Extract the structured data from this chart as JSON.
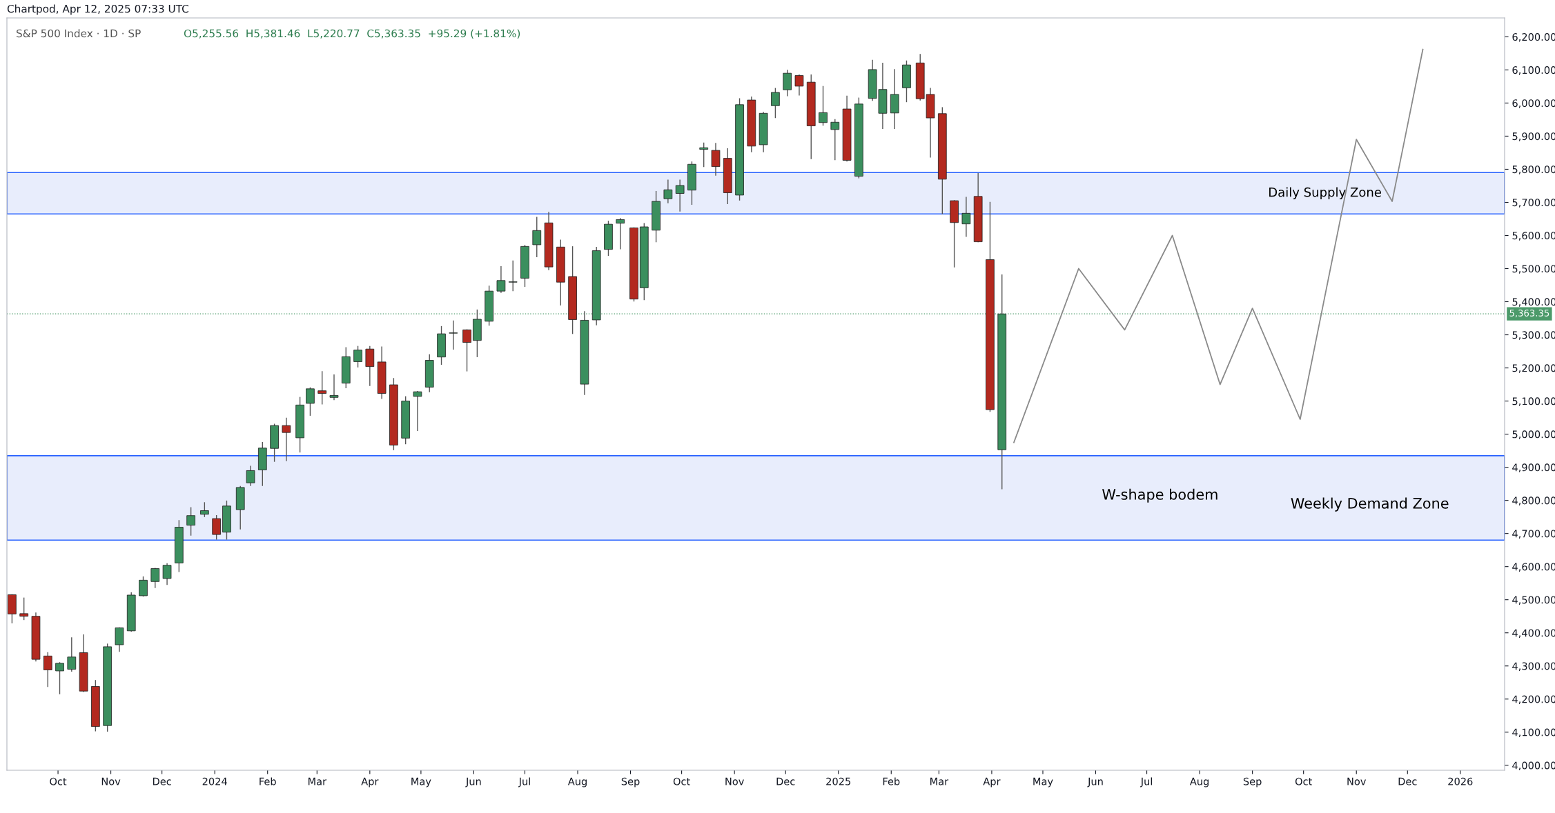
{
  "chart_data": {
    "type": "candlestick",
    "title": "S&P 500 Index · 1D · SP",
    "subtitle": "O5,255.56  H5,381.46  L5,220.77  C5,363.35  +95.29 (+1.81%)",
    "x": [
      "2023-09-04",
      "2023-09-11",
      "2023-09-18",
      "2023-09-25",
      "2023-10-02",
      "2023-10-09",
      "2023-10-16",
      "2023-10-23",
      "2023-10-30",
      "2023-11-06",
      "2023-11-13",
      "2023-11-20",
      "2023-11-27",
      "2023-12-04",
      "2023-12-11",
      "2023-12-18",
      "2023-12-26",
      "2024-01-02",
      "2024-01-08",
      "2024-01-16",
      "2024-01-22",
      "2024-01-29",
      "2024-02-05",
      "2024-02-12",
      "2024-02-20",
      "2024-02-26",
      "2024-03-04",
      "2024-03-11",
      "2024-03-18",
      "2024-03-25",
      "2024-04-01",
      "2024-04-08",
      "2024-04-15",
      "2024-04-22",
      "2024-04-29",
      "2024-05-06",
      "2024-05-13",
      "2024-05-20",
      "2024-05-28",
      "2024-06-03",
      "2024-06-10",
      "2024-06-17",
      "2024-06-24",
      "2024-07-01",
      "2024-07-08",
      "2024-07-15",
      "2024-07-22",
      "2024-07-29",
      "2024-08-05",
      "2024-08-12",
      "2024-08-19",
      "2024-08-26",
      "2024-09-03",
      "2024-09-09",
      "2024-09-16",
      "2024-09-23",
      "2024-09-30",
      "2024-10-07",
      "2024-10-14",
      "2024-10-21",
      "2024-10-28",
      "2024-11-04",
      "2024-11-11",
      "2024-11-18",
      "2024-11-25",
      "2024-12-02",
      "2024-12-09",
      "2024-12-16",
      "2024-12-23",
      "2024-12-30",
      "2025-01-06",
      "2025-01-13",
      "2025-01-21",
      "2025-01-27",
      "2025-02-03",
      "2025-02-10",
      "2025-02-18",
      "2025-02-24",
      "2025-03-03",
      "2025-03-10",
      "2025-03-17",
      "2025-03-24",
      "2025-03-31",
      "2025-04-07"
    ],
    "ohlc": [
      [
        4515,
        4515,
        4430,
        4457
      ],
      [
        4458,
        4505,
        4440,
        4450
      ],
      [
        4450,
        4460,
        4315,
        4320
      ],
      [
        4330,
        4340,
        4238,
        4288
      ],
      [
        4285,
        4310,
        4216,
        4308
      ],
      [
        4290,
        4385,
        4284,
        4327
      ],
      [
        4340,
        4394,
        4223,
        4224
      ],
      [
        4238,
        4256,
        4104,
        4117
      ],
      [
        4120,
        4366,
        4103,
        4358
      ],
      [
        4364,
        4415,
        4344,
        4415
      ],
      [
        4406,
        4521,
        4405,
        4514
      ],
      [
        4512,
        4569,
        4511,
        4559
      ],
      [
        4555,
        4595,
        4537,
        4594
      ],
      [
        4564,
        4609,
        4546,
        4604
      ],
      [
        4611,
        4739,
        4585,
        4719
      ],
      [
        4725,
        4778,
        4695,
        4754
      ],
      [
        4758,
        4793,
        4751,
        4769
      ],
      [
        4745,
        4754,
        4683,
        4697
      ],
      [
        4704,
        4798,
        4683,
        4783
      ],
      [
        4772,
        4842,
        4714,
        4839
      ],
      [
        4853,
        4903,
        4845,
        4890
      ],
      [
        4892,
        4975,
        4845,
        4958
      ],
      [
        4957,
        5030,
        4918,
        5026
      ],
      [
        5026,
        5048,
        4920,
        5005
      ],
      [
        4989,
        5111,
        4946,
        5088
      ],
      [
        5093,
        5140,
        5057,
        5137
      ],
      [
        5131,
        5189,
        5091,
        5123
      ],
      [
        5111,
        5179,
        5104,
        5117
      ],
      [
        5154,
        5261,
        5140,
        5234
      ],
      [
        5219,
        5265,
        5203,
        5254
      ],
      [
        5257,
        5265,
        5147,
        5204
      ],
      [
        5218,
        5263,
        5108,
        5123
      ],
      [
        5149,
        5168,
        4953,
        4967
      ],
      [
        4988,
        5113,
        4971,
        5100
      ],
      [
        5114,
        5129,
        5011,
        5128
      ],
      [
        5142,
        5240,
        5128,
        5223
      ],
      [
        5233,
        5325,
        5211,
        5303
      ],
      [
        5305,
        5342,
        5257,
        5305
      ],
      [
        5315,
        5315,
        5191,
        5277
      ],
      [
        5283,
        5375,
        5234,
        5347
      ],
      [
        5341,
        5447,
        5329,
        5432
      ],
      [
        5432,
        5506,
        5428,
        5464
      ],
      [
        5459,
        5523,
        5433,
        5460
      ],
      [
        5471,
        5570,
        5446,
        5567
      ],
      [
        5572,
        5655,
        5536,
        5615
      ],
      [
        5638,
        5670,
        5497,
        5505
      ],
      [
        5565,
        5586,
        5390,
        5459
      ],
      [
        5476,
        5566,
        5304,
        5346
      ],
      [
        5151,
        5370,
        5120,
        5344
      ],
      [
        5345,
        5564,
        5330,
        5554
      ],
      [
        5558,
        5643,
        5540,
        5634
      ],
      [
        5637,
        5651,
        5560,
        5648
      ],
      [
        5623,
        5623,
        5402,
        5408
      ],
      [
        5442,
        5636,
        5406,
        5626
      ],
      [
        5616,
        5733,
        5581,
        5703
      ],
      [
        5711,
        5767,
        5699,
        5738
      ],
      [
        5727,
        5767,
        5674,
        5751
      ],
      [
        5737,
        5822,
        5694,
        5815
      ],
      [
        5860,
        5879,
        5808,
        5865
      ],
      [
        5857,
        5878,
        5782,
        5808
      ],
      [
        5833,
        5862,
        5696,
        5729
      ],
      [
        5722,
        6013,
        5707,
        5995
      ],
      [
        6009,
        6018,
        5853,
        5870
      ],
      [
        5874,
        5972,
        5853,
        5969
      ],
      [
        5992,
        6044,
        5956,
        6032
      ],
      [
        6040,
        6099,
        6022,
        6090
      ],
      [
        6083,
        6085,
        6024,
        6051
      ],
      [
        6063,
        6085,
        5832,
        5931
      ],
      [
        5941,
        6050,
        5933,
        5971
      ],
      [
        5920,
        5950,
        5829,
        5942
      ],
      [
        5982,
        6021,
        5825,
        5827
      ],
      [
        5779,
        6015,
        5774,
        5997
      ],
      [
        6014,
        6129,
        6008,
        6101
      ],
      [
        5969,
        6120,
        5923,
        6041
      ],
      [
        5970,
        6101,
        5923,
        6026
      ],
      [
        6046,
        6127,
        6004,
        6115
      ],
      [
        6121,
        6147,
        6009,
        6013
      ],
      [
        6026,
        6044,
        5837,
        5955
      ],
      [
        5968,
        5986,
        5666,
        5770
      ],
      [
        5705,
        5705,
        5505,
        5639
      ],
      [
        5635,
        5715,
        5597,
        5667
      ],
      [
        5718,
        5787,
        5581,
        5581
      ],
      [
        5527,
        5700,
        5069,
        5074
      ],
      [
        4953,
        5481,
        4835,
        5363
      ]
    ],
    "series": [
      {
        "type": "line",
        "color": "#8a8a8a",
        "x": [
          "2025-04-14",
          "2025-05-22",
          "2025-06-18",
          "2025-07-16",
          "2025-08-13",
          "2025-09-01",
          "2025-09-29",
          "2025-11-01",
          "2025-11-22",
          "2025-12-10"
        ],
        "values": [
          4975,
          5500,
          5315,
          5600,
          5150,
          5380,
          5045,
          5890,
          5703,
          6162
        ]
      }
    ],
    "xlim": [
      "2023-09-01",
      "2026-01-27"
    ],
    "xticks": [
      {
        "value": "2023-10-01",
        "label": "Oct"
      },
      {
        "value": "2023-11-01",
        "label": "Nov"
      },
      {
        "value": "2023-12-01",
        "label": "Dec"
      },
      {
        "value": "2024-01-01",
        "label": "2024"
      },
      {
        "value": "2024-02-01",
        "label": "Feb"
      },
      {
        "value": "2024-03-01",
        "label": "Mar"
      },
      {
        "value": "2024-04-01",
        "label": "Apr"
      },
      {
        "value": "2024-05-01",
        "label": "May"
      },
      {
        "value": "2024-06-01",
        "label": "Jun"
      },
      {
        "value": "2024-07-01",
        "label": "Jul"
      },
      {
        "value": "2024-08-01",
        "label": "Aug"
      },
      {
        "value": "2024-09-01",
        "label": "Sep"
      },
      {
        "value": "2024-10-01",
        "label": "Oct"
      },
      {
        "value": "2024-11-01",
        "label": "Nov"
      },
      {
        "value": "2024-12-01",
        "label": "Dec"
      },
      {
        "value": "2025-01-01",
        "label": "2025"
      },
      {
        "value": "2025-02-01",
        "label": "Feb"
      },
      {
        "value": "2025-03-01",
        "label": "Mar"
      },
      {
        "value": "2025-04-01",
        "label": "Apr"
      },
      {
        "value": "2025-05-01",
        "label": "May"
      },
      {
        "value": "2025-06-01",
        "label": "Jun"
      },
      {
        "value": "2025-07-01",
        "label": "Jul"
      },
      {
        "value": "2025-08-01",
        "label": "Aug"
      },
      {
        "value": "2025-09-01",
        "label": "Sep"
      },
      {
        "value": "2025-10-01",
        "label": "Oct"
      },
      {
        "value": "2025-11-01",
        "label": "Nov"
      },
      {
        "value": "2025-12-01",
        "label": "Dec"
      },
      {
        "value": "2026-01-01",
        "label": "2026"
      }
    ],
    "ylim": [
      3985,
      6257
    ],
    "yticks": [
      {
        "value": 4000,
        "label": "4,000.00"
      },
      {
        "value": 4100,
        "label": "4,100.00"
      },
      {
        "value": 4200,
        "label": "4,200.00"
      },
      {
        "value": 4300,
        "label": "4,300.00"
      },
      {
        "value": 4400,
        "label": "4,400.00"
      },
      {
        "value": 4500,
        "label": "4,500.00"
      },
      {
        "value": 4600,
        "label": "4,600.00"
      },
      {
        "value": 4700,
        "label": "4,700.00"
      },
      {
        "value": 4800,
        "label": "4,800.00"
      },
      {
        "value": 4900,
        "label": "4,900.00"
      },
      {
        "value": 5000,
        "label": "5,000.00"
      },
      {
        "value": 5100,
        "label": "5,100.00"
      },
      {
        "value": 5200,
        "label": "5,200.00"
      },
      {
        "value": 5300,
        "label": "5,300.00"
      },
      {
        "value": 5400,
        "label": "5,400.00"
      },
      {
        "value": 5500,
        "label": "5,500.00"
      },
      {
        "value": 5600,
        "label": "5,600.00"
      },
      {
        "value": 5700,
        "label": "5,700.00"
      },
      {
        "value": 5800,
        "label": "5,800.00"
      },
      {
        "value": 5900,
        "label": "5,900.00"
      },
      {
        "value": 6000,
        "label": "6,000.00"
      },
      {
        "value": 6100,
        "label": "6,100.00"
      },
      {
        "value": 6200,
        "label": "6,200.00"
      }
    ],
    "bands": [
      {
        "axis": "y",
        "from": 5665,
        "to": 5790,
        "label": "Daily Supply Zone",
        "color": "#e8edfc"
      },
      {
        "axis": "y",
        "from": 4680,
        "to": 4935,
        "label": "Weekly Demand Zone",
        "color": "#e8edfc"
      }
    ],
    "ref_lines": [
      {
        "axis": "y",
        "value": 5363.35,
        "label": "5,363.35",
        "color": "#4c9a6a",
        "line_style": "dotted"
      }
    ],
    "annotations": [
      "W-shape bodem",
      "Chartpod, Apr 12, 2025 07:33 UTC"
    ],
    "grid": false,
    "legend": false
  }
}
